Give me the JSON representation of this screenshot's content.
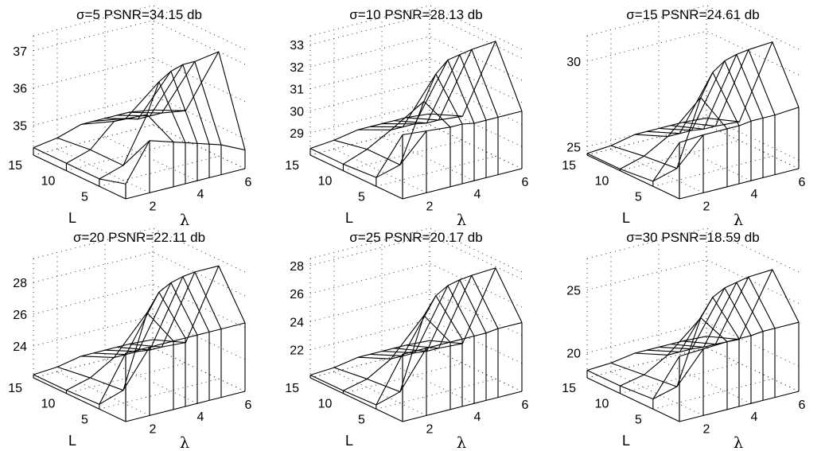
{
  "chart_data": [
    {
      "type": "surface",
      "title": "σ=5 PSNR=34.15 db",
      "xlabel": "λ",
      "ylabel": "L",
      "x_ticks": [
        "2",
        "4",
        "6"
      ],
      "y_ticks": [
        "5",
        "10",
        "15"
      ],
      "z_ticks": [
        "35",
        "36",
        "37"
      ],
      "zlim": [
        34.2,
        37.4
      ],
      "lambda": [
        1,
        2,
        3,
        3.5,
        4,
        4.5,
        5,
        6
      ],
      "L": [
        1,
        5,
        10,
        15
      ],
      "z": [
        [
          34.6,
          35.6,
          35.4,
          35.3,
          35.2,
          35.1,
          35.0,
          34.7
        ],
        [
          34.4,
          34.6,
          35.8,
          36.6,
          36.8,
          36.9,
          36.9,
          37.0
        ],
        [
          34.4,
          34.6,
          35.2,
          35.2,
          35.1,
          35.1,
          35.1,
          35.0
        ],
        [
          34.4,
          34.5,
          34.7,
          34.7,
          34.7,
          34.7,
          34.7,
          34.6
        ]
      ]
    },
    {
      "type": "surface",
      "title": "σ=10 PSNR=28.13 db",
      "xlabel": "λ",
      "ylabel": "L",
      "x_ticks": [
        "2",
        "4",
        "6"
      ],
      "y_ticks": [
        "5",
        "10",
        "15"
      ],
      "z_ticks": [
        "29",
        "30",
        "31",
        "32",
        "33"
      ],
      "zlim": [
        28.0,
        33.4
      ],
      "lambda": [
        1,
        2,
        3,
        3.5,
        4,
        4.5,
        5,
        6
      ],
      "L": [
        1,
        5,
        10,
        15
      ],
      "z": [
        [
          30.9,
          30.8,
          30.7,
          30.7,
          30.6,
          30.6,
          30.6,
          30.6
        ],
        [
          28.4,
          28.7,
          31.3,
          32.4,
          32.9,
          33.0,
          33.1,
          33.2
        ],
        [
          28.3,
          28.7,
          29.3,
          29.3,
          29.3,
          29.2,
          29.2,
          29.1
        ],
        [
          28.3,
          28.4,
          28.6,
          28.6,
          28.6,
          28.6,
          28.6,
          28.5
        ]
      ]
    },
    {
      "type": "surface",
      "title": "σ=15 PSNR=24.61 db",
      "xlabel": "λ",
      "ylabel": "L",
      "x_ticks": [
        "2",
        "4",
        "6"
      ],
      "y_ticks": [
        "5",
        "10",
        "15"
      ],
      "z_ticks": [
        "25",
        "30"
      ],
      "zlim": [
        24.5,
        31.5
      ],
      "lambda": [
        1,
        2,
        3,
        3.5,
        4,
        4.5,
        5,
        6
      ],
      "L": [
        1,
        5,
        10,
        15
      ],
      "z": [
        [
          27.8,
          27.9,
          27.9,
          27.9,
          28.0,
          28.0,
          28.0,
          28.1
        ],
        [
          24.8,
          25.2,
          29.0,
          30.3,
          30.8,
          31.0,
          31.1,
          31.2
        ],
        [
          24.6,
          25.0,
          25.8,
          25.8,
          25.8,
          25.7,
          25.7,
          25.6
        ],
        [
          24.6,
          24.7,
          25.0,
          25.0,
          25.0,
          25.0,
          25.0,
          24.9
        ]
      ]
    },
    {
      "type": "surface",
      "title": "σ=20 PSNR=22.11 db",
      "xlabel": "λ",
      "ylabel": "L",
      "x_ticks": [
        "2",
        "4",
        "6"
      ],
      "y_ticks": [
        "5",
        "10",
        "15"
      ],
      "z_ticks": [
        "24",
        "26",
        "28"
      ],
      "zlim": [
        22.0,
        29.5
      ],
      "lambda": [
        1,
        2,
        3,
        3.5,
        4,
        4.5,
        5,
        6
      ],
      "L": [
        1,
        5,
        10,
        15
      ],
      "z": [
        [
          26.3,
          26.3,
          26.3,
          26.3,
          26.3,
          26.3,
          26.3,
          26.3
        ],
        [
          22.3,
          22.8,
          27.3,
          28.4,
          28.8,
          29.0,
          29.1,
          29.1
        ],
        [
          22.2,
          22.6,
          23.5,
          23.5,
          23.5,
          23.4,
          23.4,
          23.3
        ],
        [
          22.2,
          22.3,
          22.6,
          22.6,
          22.6,
          22.6,
          22.6,
          22.5
        ]
      ]
    },
    {
      "type": "surface",
      "title": "σ=25 PSNR=20.17 db",
      "xlabel": "λ",
      "ylabel": "L",
      "x_ticks": [
        "2",
        "4",
        "6"
      ],
      "y_ticks": [
        "5",
        "10",
        "15"
      ],
      "z_ticks": [
        "22",
        "24",
        "26",
        "28"
      ],
      "zlim": [
        20.0,
        28.5
      ],
      "lambda": [
        1,
        2,
        3,
        3.5,
        4,
        4.5,
        5,
        6
      ],
      "L": [
        1,
        5,
        10,
        15
      ],
      "z": [
        [
          24.8,
          24.8,
          24.8,
          24.8,
          24.8,
          24.8,
          24.9,
          24.9
        ],
        [
          20.3,
          20.8,
          25.8,
          27.0,
          27.5,
          27.7,
          27.8,
          27.9
        ],
        [
          20.2,
          20.6,
          21.6,
          21.6,
          21.6,
          21.5,
          21.5,
          21.4
        ],
        [
          20.2,
          20.3,
          20.6,
          20.6,
          20.6,
          20.6,
          20.6,
          20.5
        ]
      ]
    },
    {
      "type": "surface",
      "title": "σ=30 PSNR=18.59 db",
      "xlabel": "λ",
      "ylabel": "L",
      "x_ticks": [
        "2",
        "4",
        "6"
      ],
      "y_ticks": [
        "5",
        "10",
        "15"
      ],
      "z_ticks": [
        "20",
        "25"
      ],
      "zlim": [
        18.0,
        27.5
      ],
      "lambda": [
        1,
        2,
        3,
        3.5,
        4,
        4.5,
        5,
        6
      ],
      "L": [
        1,
        5,
        10,
        15
      ],
      "z": [
        [
          23.2,
          23.3,
          23.4,
          23.4,
          23.4,
          23.5,
          23.5,
          23.5
        ],
        [
          18.8,
          19.3,
          24.3,
          25.7,
          26.2,
          26.4,
          26.6,
          26.7
        ],
        [
          18.6,
          19.0,
          20.1,
          20.1,
          20.1,
          20.0,
          20.0,
          19.9
        ],
        [
          18.6,
          18.7,
          19.0,
          19.0,
          19.0,
          19.0,
          19.0,
          18.9
        ]
      ]
    }
  ]
}
